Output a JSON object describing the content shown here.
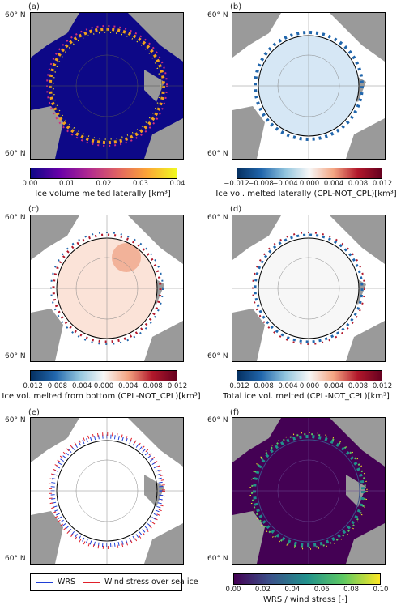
{
  "panels": [
    {
      "label": "(a)",
      "lat_top": "60° N",
      "lat_bottom": "60° N",
      "cbar": {
        "title": "Ice volume melted laterally [km³]",
        "ticks": [
          "0.00",
          "0.01",
          "0.02",
          "0.03",
          "0.04"
        ],
        "colormap": "plasma"
      }
    },
    {
      "label": "(b)",
      "lat_top": "60° N",
      "lat_bottom": "60° N",
      "cbar": {
        "title": "Ice vol. melted laterally (CPL-NOT_CPL)[km³]",
        "ticks": [
          "−0.012",
          "−0.008",
          "−0.004",
          "0.000",
          "0.004",
          "0.008",
          "0.012"
        ],
        "colormap": "RdBu_r"
      }
    },
    {
      "label": "(c)",
      "lat_top": "60° N",
      "lat_bottom": "60° N",
      "cbar": {
        "title": "Ice vol. melted from bottom (CPL-NOT_CPL)[km³]",
        "ticks": [
          "−0.012",
          "−0.008",
          "−0.004",
          "0.000",
          "0.004",
          "0.008",
          "0.012"
        ],
        "colormap": "RdBu_r"
      }
    },
    {
      "label": "(d)",
      "lat_top": "60° N",
      "lat_bottom": "60° N",
      "cbar": {
        "title": "Total ice vol. melted (CPL-NOT_CPL)[km³]",
        "ticks": [
          "−0.012",
          "−0.008",
          "−0.004",
          "0.000",
          "0.004",
          "0.008",
          "0.012"
        ],
        "colormap": "RdBu_r"
      }
    },
    {
      "label": "(e)",
      "lat_top": "60° N",
      "lat_bottom": "60° N",
      "legend": {
        "items": [
          {
            "label": "WRS",
            "color": "#1f3fd6"
          },
          {
            "label": "Wind stress over sea ice",
            "color": "#e0202a"
          }
        ]
      }
    },
    {
      "label": "(f)",
      "lat_top": "60° N",
      "lat_bottom": "60° N",
      "cbar": {
        "title": "WRS / wind stress [-]",
        "ticks": [
          "0.00",
          "0.02",
          "0.04",
          "0.06",
          "0.08",
          "0.10"
        ],
        "colormap": "viridis"
      }
    }
  ],
  "colors": {
    "land": "#9a9a9a",
    "ocean_plasma": "#0d0887",
    "ocean_viridis": "#440154",
    "ice_white": "#ffffff",
    "contour": "#000000"
  }
}
